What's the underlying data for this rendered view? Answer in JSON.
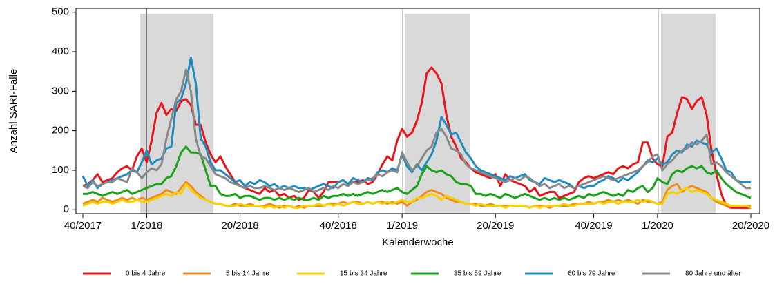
{
  "chart_data": {
    "type": "line",
    "x_label": "Kalenderwoche",
    "y_label": "Anzahl SARI-Fälle",
    "categories": [
      "40/2017",
      null,
      null,
      null,
      null,
      null,
      null,
      null,
      null,
      null,
      null,
      null,
      null,
      "1/2018",
      null,
      null,
      null,
      null,
      null,
      null,
      null,
      null,
      null,
      null,
      null,
      null,
      null,
      null,
      null,
      null,
      null,
      null,
      "20/2018",
      null,
      null,
      null,
      null,
      null,
      null,
      null,
      null,
      null,
      null,
      null,
      null,
      null,
      null,
      null,
      null,
      null,
      null,
      null,
      "40/2018",
      null,
      null,
      null,
      null,
      null,
      null,
      null,
      null,
      null,
      null,
      null,
      null,
      "1/2019",
      null,
      null,
      null,
      null,
      null,
      null,
      null,
      null,
      null,
      null,
      null,
      null,
      null,
      null,
      null,
      null,
      null,
      null,
      "20/2019",
      null,
      null,
      null,
      null,
      null,
      null,
      null,
      null,
      null,
      null,
      null,
      null,
      null,
      null,
      null,
      null,
      null,
      null,
      null,
      "40/2019",
      null,
      null,
      null,
      null,
      null,
      null,
      null,
      null,
      null,
      null,
      null,
      null,
      "1/2020",
      null,
      null,
      null,
      null,
      null,
      null,
      null,
      null,
      null,
      null,
      null,
      null,
      null,
      null,
      null,
      null,
      null,
      null,
      "20/2020"
    ],
    "ylim": [
      -10,
      510
    ],
    "yticks": [
      0,
      100,
      200,
      300,
      400,
      500
    ],
    "series": [
      {
        "name": "0 bis 4 Jahre",
        "color": "#e8161b",
        "values": [
          60,
          65,
          75,
          90,
          70,
          75,
          80,
          95,
          105,
          110,
          100,
          135,
          155,
          120,
          175,
          245,
          270,
          240,
          255,
          250,
          275,
          280,
          265,
          215,
          215,
          170,
          140,
          120,
          135,
          110,
          90,
          70,
          60,
          55,
          50,
          45,
          40,
          55,
          45,
          50,
          35,
          40,
          30,
          35,
          25,
          30,
          50,
          45,
          30,
          45,
          70,
          70,
          70,
          75,
          65,
          70,
          70,
          75,
          65,
          70,
          90,
          115,
          135,
          125,
          175,
          205,
          185,
          195,
          225,
          270,
          345,
          360,
          345,
          320,
          240,
          185,
          160,
          130,
          120,
          105,
          95,
          90,
          85,
          80,
          90,
          60,
          90,
          75,
          70,
          65,
          60,
          45,
          55,
          35,
          40,
          45,
          45,
          30,
          35,
          40,
          45,
          70,
          80,
          85,
          80,
          85,
          90,
          95,
          90,
          105,
          110,
          105,
          115,
          120,
          170,
          170,
          130,
          115,
          110,
          185,
          195,
          245,
          285,
          280,
          255,
          275,
          285,
          240,
          150,
          90,
          40,
          10,
          5,
          5,
          5,
          5,
          5
        ]
      },
      {
        "name": "5 bis 14 Jahre",
        "color": "#f08a1d",
        "values": [
          15,
          20,
          25,
          20,
          30,
          25,
          20,
          25,
          30,
          25,
          30,
          25,
          30,
          25,
          30,
          35,
          40,
          50,
          45,
          40,
          55,
          70,
          60,
          45,
          35,
          25,
          20,
          15,
          15,
          10,
          10,
          15,
          10,
          10,
          15,
          10,
          10,
          10,
          15,
          10,
          5,
          10,
          10,
          5,
          10,
          5,
          10,
          10,
          10,
          10,
          15,
          15,
          15,
          20,
          15,
          20,
          20,
          15,
          20,
          15,
          20,
          20,
          15,
          20,
          15,
          20,
          10,
          20,
          25,
          35,
          45,
          50,
          45,
          40,
          30,
          25,
          20,
          20,
          15,
          15,
          15,
          10,
          10,
          15,
          10,
          10,
          10,
          10,
          10,
          10,
          10,
          5,
          10,
          10,
          10,
          5,
          10,
          10,
          10,
          10,
          15,
          15,
          15,
          20,
          15,
          20,
          20,
          25,
          20,
          25,
          20,
          25,
          20,
          15,
          25,
          20,
          20,
          15,
          20,
          50,
          60,
          65,
          45,
          55,
          60,
          55,
          50,
          45,
          30,
          20,
          15,
          10,
          10,
          10,
          10,
          10,
          10
        ]
      },
      {
        "name": "15 bis 34 Jahre",
        "color": "#f7d000",
        "values": [
          10,
          15,
          20,
          15,
          20,
          20,
          15,
          20,
          25,
          20,
          20,
          25,
          20,
          20,
          25,
          30,
          35,
          40,
          35,
          45,
          40,
          65,
          50,
          40,
          30,
          25,
          20,
          15,
          15,
          10,
          10,
          10,
          15,
          10,
          10,
          10,
          10,
          5,
          10,
          5,
          10,
          5,
          10,
          5,
          5,
          10,
          10,
          10,
          15,
          10,
          15,
          10,
          15,
          10,
          15,
          20,
          15,
          15,
          20,
          15,
          20,
          15,
          20,
          15,
          20,
          25,
          20,
          20,
          30,
          30,
          35,
          40,
          35,
          25,
          35,
          30,
          25,
          20,
          15,
          15,
          10,
          15,
          10,
          10,
          10,
          10,
          5,
          10,
          10,
          10,
          10,
          5,
          10,
          5,
          10,
          10,
          10,
          10,
          15,
          10,
          10,
          15,
          15,
          15,
          15,
          20,
          15,
          20,
          20,
          15,
          20,
          20,
          20,
          25,
          20,
          25,
          20,
          15,
          15,
          40,
          45,
          40,
          50,
          55,
          45,
          50,
          45,
          40,
          30,
          25,
          20,
          15,
          10,
          10,
          10,
          10,
          5
        ]
      },
      {
        "name": "35 bis 59 Jahre",
        "color": "#1aa31a",
        "values": [
          40,
          40,
          45,
          40,
          35,
          40,
          45,
          40,
          45,
          50,
          40,
          45,
          50,
          55,
          60,
          65,
          65,
          80,
          85,
          110,
          145,
          160,
          145,
          145,
          140,
          100,
          60,
          60,
          40,
          35,
          35,
          40,
          30,
          35,
          35,
          30,
          25,
          30,
          30,
          25,
          30,
          25,
          30,
          25,
          30,
          25,
          25,
          30,
          25,
          35,
          30,
          35,
          35,
          40,
          35,
          40,
          35,
          40,
          45,
          40,
          45,
          50,
          45,
          50,
          55,
          45,
          40,
          50,
          60,
          90,
          110,
          100,
          95,
          100,
          90,
          85,
          70,
          65,
          65,
          60,
          40,
          40,
          35,
          40,
          35,
          30,
          40,
          35,
          30,
          35,
          40,
          35,
          30,
          25,
          30,
          25,
          30,
          25,
          30,
          25,
          30,
          35,
          30,
          40,
          35,
          40,
          45,
          40,
          35,
          40,
          35,
          50,
          45,
          55,
          60,
          45,
          55,
          80,
          70,
          65,
          90,
          100,
          95,
          105,
          110,
          105,
          110,
          95,
          90,
          100,
          80,
          65,
          55,
          45,
          40,
          35,
          30
        ]
      },
      {
        "name": "60 bis 79 Jahre",
        "color": "#1f8bbf",
        "values": [
          85,
          60,
          75,
          55,
          65,
          70,
          75,
          80,
          85,
          90,
          100,
          95,
          120,
          150,
          115,
          125,
          130,
          155,
          160,
          270,
          280,
          320,
          385,
          320,
          180,
          160,
          120,
          100,
          100,
          90,
          80,
          70,
          75,
          60,
          70,
          65,
          75,
          70,
          60,
          65,
          55,
          60,
          55,
          60,
          55,
          55,
          50,
          55,
          60,
          65,
          60,
          55,
          70,
          75,
          65,
          80,
          75,
          70,
          80,
          75,
          95,
          100,
          95,
          105,
          100,
          140,
          110,
          95,
          115,
          100,
          120,
          140,
          175,
          235,
          215,
          190,
          195,
          170,
          145,
          130,
          110,
          100,
          95,
          90,
          85,
          80,
          75,
          85,
          80,
          85,
          90,
          75,
          70,
          65,
          80,
          75,
          70,
          75,
          70,
          65,
          55,
          60,
          55,
          60,
          60,
          70,
          75,
          85,
          80,
          70,
          80,
          75,
          85,
          95,
          110,
          125,
          120,
          130,
          115,
          120,
          140,
          150,
          145,
          165,
          160,
          175,
          170,
          165,
          145,
          155,
          130,
          100,
          95,
          75,
          70,
          70,
          70
        ]
      },
      {
        "name": "80 Jahre und älter",
        "color": "#888888",
        "values": [
          60,
          55,
          70,
          60,
          65,
          70,
          70,
          80,
          75,
          70,
          105,
          95,
          80,
          95,
          105,
          100,
          115,
          180,
          230,
          280,
          300,
          355,
          300,
          180,
          135,
          130,
          110,
          90,
          85,
          80,
          70,
          65,
          60,
          55,
          60,
          55,
          55,
          60,
          55,
          50,
          55,
          50,
          55,
          50,
          45,
          50,
          55,
          45,
          50,
          55,
          50,
          60,
          55,
          65,
          60,
          70,
          65,
          70,
          75,
          80,
          90,
          85,
          95,
          100,
          95,
          145,
          120,
          100,
          110,
          130,
          150,
          160,
          195,
          205,
          185,
          155,
          150,
          140,
          115,
          105,
          100,
          95,
          90,
          85,
          80,
          75,
          70,
          75,
          80,
          75,
          85,
          80,
          70,
          60,
          65,
          55,
          60,
          65,
          55,
          60,
          55,
          60,
          65,
          70,
          75,
          80,
          85,
          80,
          75,
          80,
          85,
          90,
          95,
          100,
          110,
          120,
          135,
          140,
          100,
          115,
          125,
          140,
          150,
          155,
          170,
          165,
          175,
          190,
          115,
          120,
          110,
          95,
          85,
          75,
          65,
          55,
          55
        ]
      }
    ]
  }
}
